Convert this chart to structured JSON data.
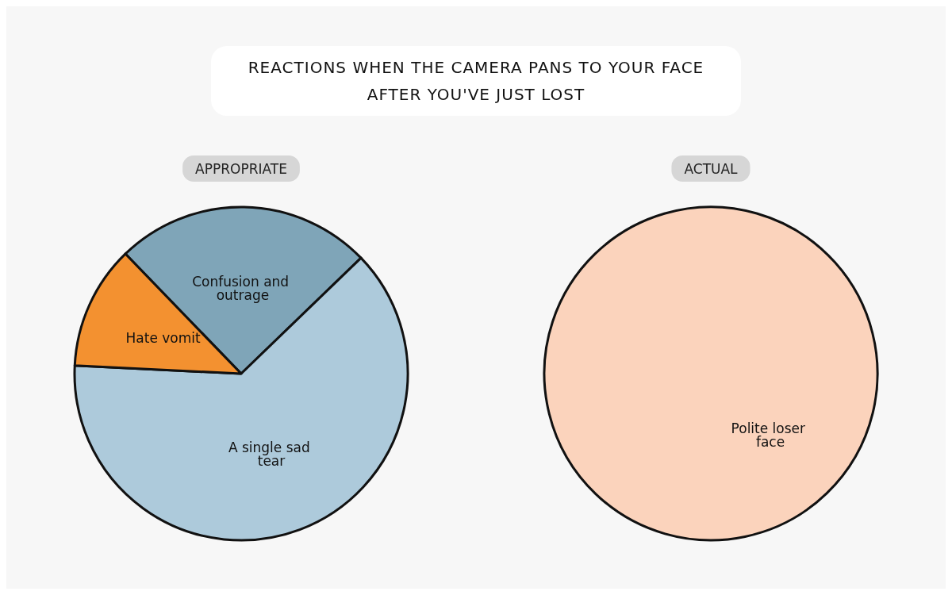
{
  "chart_data": [
    {
      "type": "pie",
      "title": "REACTIONS WHEN THE CAMERA PANS TO YOUR FACE AFTER YOU'VE JUST LOST",
      "subtitle": "APPROPRIATE",
      "categories": [
        "Confusion and outrage",
        "A single sad tear",
        "Hate vomit"
      ],
      "values": [
        25,
        63,
        12
      ],
      "colors": [
        "#7fa5b8",
        "#adcadb",
        "#f39130"
      ],
      "legend": false
    },
    {
      "type": "pie",
      "subtitle": "ACTUAL",
      "categories": [
        "Polite loser face"
      ],
      "values": [
        100
      ],
      "colors": [
        "#fbd3bc"
      ],
      "legend": false
    }
  ]
}
